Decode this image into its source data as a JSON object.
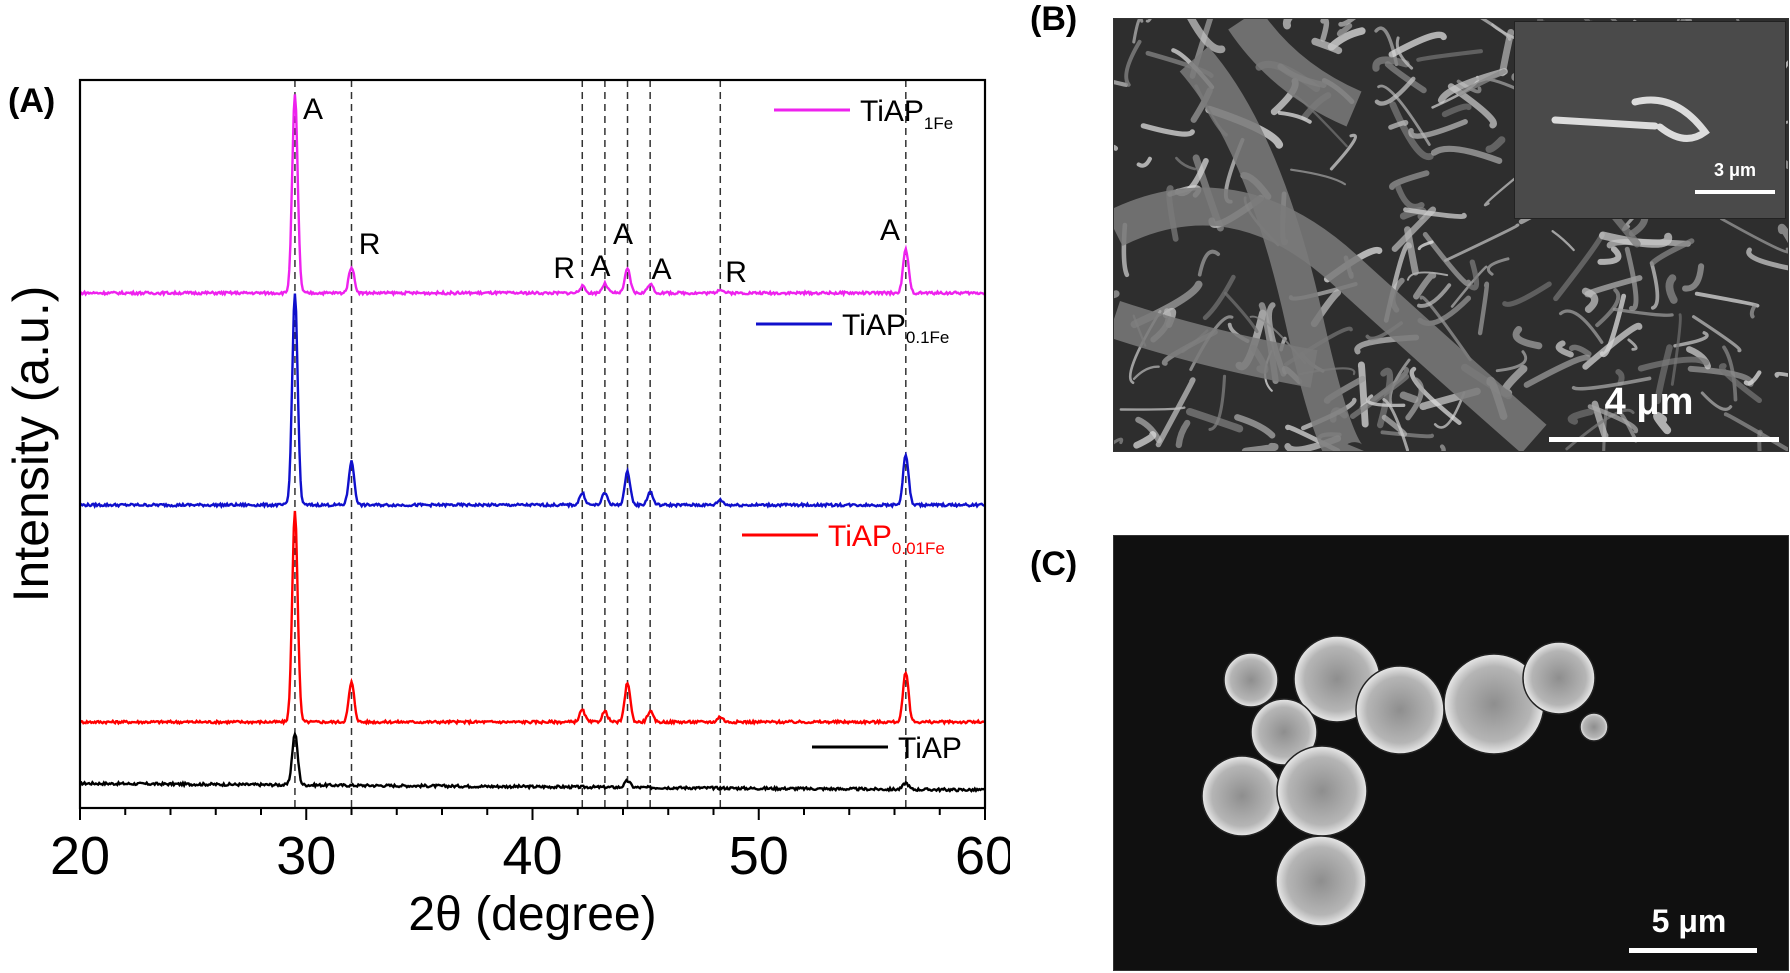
{
  "panels": {
    "a_label": "(A)",
    "b_label": "(B)",
    "c_label": "(C)"
  },
  "chart_data": {
    "type": "line",
    "xlabel": "2θ (degree)",
    "ylabel": "Intensity (a.u.)",
    "xlim": [
      20,
      60
    ],
    "xticks": [
      20,
      30,
      40,
      50,
      60
    ],
    "grid": false,
    "legend_placement": "inline-right",
    "reference_lines": [
      29.5,
      32.0,
      42.2,
      43.2,
      44.2,
      45.2,
      48.3,
      56.5
    ],
    "peak_labels": [
      {
        "text": "A",
        "x": 30.3
      },
      {
        "text": "R",
        "x": 32.8
      },
      {
        "text": "R",
        "x": 41.4
      },
      {
        "text": "A",
        "x": 43.0
      },
      {
        "text": "A",
        "x": 44.0
      },
      {
        "text": "A",
        "x": 45.7
      },
      {
        "text": "R",
        "x": 49.0
      },
      {
        "text": "A",
        "x": 55.8
      }
    ],
    "series": [
      {
        "name": "TiAP",
        "name_main": "TiAP",
        "name_sub": "",
        "color": "#000000",
        "peaks": [
          {
            "x": 29.5,
            "h": 0.39
          },
          {
            "x": 44.2,
            "h": 0.05
          },
          {
            "x": 56.5,
            "h": 0.05
          }
        ]
      },
      {
        "name": "TiAP0.01Fe",
        "name_main": "TiAP",
        "name_sub": "0.01Fe",
        "color": "#ff0000",
        "peaks": [
          {
            "x": 29.5,
            "h": 1.6
          },
          {
            "x": 32.0,
            "h": 0.3
          },
          {
            "x": 42.2,
            "h": 0.09
          },
          {
            "x": 43.2,
            "h": 0.08
          },
          {
            "x": 44.2,
            "h": 0.3
          },
          {
            "x": 45.2,
            "h": 0.08
          },
          {
            "x": 48.3,
            "h": 0.04
          },
          {
            "x": 56.5,
            "h": 0.38
          }
        ]
      },
      {
        "name": "TiAP0.1Fe",
        "name_main": "TiAP",
        "name_sub": "0.1Fe",
        "color": "#1010cc",
        "peaks": [
          {
            "x": 29.5,
            "h": 1.6
          },
          {
            "x": 32.0,
            "h": 0.33
          },
          {
            "x": 42.2,
            "h": 0.09
          },
          {
            "x": 43.2,
            "h": 0.09
          },
          {
            "x": 44.2,
            "h": 0.25
          },
          {
            "x": 45.2,
            "h": 0.1
          },
          {
            "x": 48.3,
            "h": 0.04
          },
          {
            "x": 56.5,
            "h": 0.38
          }
        ]
      },
      {
        "name": "TiAP1Fe",
        "name_main": "TiAP",
        "name_sub": "1Fe",
        "color": "#ee22ee",
        "peaks": [
          {
            "x": 29.5,
            "h": 1.5
          },
          {
            "x": 32.0,
            "h": 0.2
          },
          {
            "x": 42.2,
            "h": 0.05
          },
          {
            "x": 43.2,
            "h": 0.07
          },
          {
            "x": 44.2,
            "h": 0.18
          },
          {
            "x": 45.2,
            "h": 0.07
          },
          {
            "x": 48.3,
            "h": 0.03
          },
          {
            "x": 56.5,
            "h": 0.33
          }
        ]
      }
    ]
  },
  "sem_b": {
    "scale_label": "4 μm",
    "inset_scale_label": "3 μm"
  },
  "sem_c": {
    "scale_label": "5 μm"
  }
}
